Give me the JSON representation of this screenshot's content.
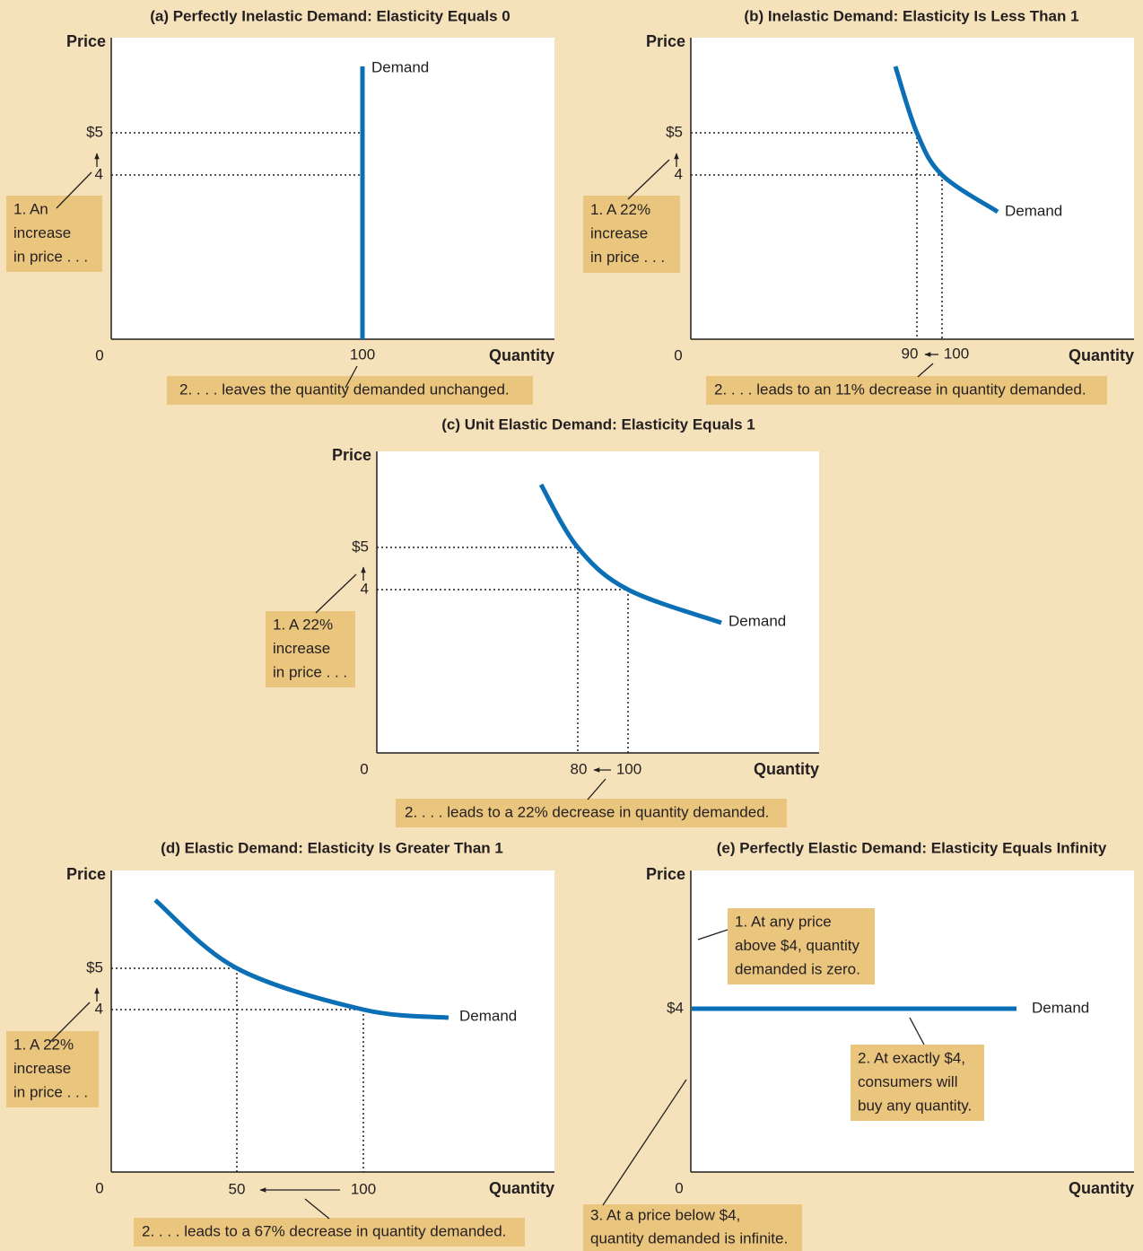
{
  "colors": {
    "background": "#f5e2bb",
    "annotation_box": "#eac57e",
    "plot_background": "#ffffff",
    "demand_curve": "#0b6fb5",
    "text": "#231f20"
  },
  "chart_data": [
    {
      "panel": "a",
      "type": "line",
      "title": "(a) Perfectly Inelastic Demand: Elasticity Equals 0",
      "xlabel": "Quantity",
      "ylabel": "Price",
      "origin_label": "0",
      "grid": false,
      "curve_label": "Demand",
      "series": [
        {
          "name": "Demand",
          "x": [
            100,
            100
          ],
          "y": [
            0,
            6.6
          ]
        }
      ],
      "ytick_labels": {
        "high": "$5",
        "low": "4"
      },
      "xtick_labels": [
        "100"
      ],
      "annotations": {
        "price_change": [
          "1. An",
          "increase",
          "in price . . ."
        ],
        "quantity_change": [
          "2. . . . leaves the quantity demanded unchanged."
        ]
      }
    },
    {
      "panel": "b",
      "type": "line",
      "title": "(b) Inelastic Demand: Elasticity Is Less Than 1",
      "xlabel": "Quantity",
      "ylabel": "Price",
      "origin_label": "0",
      "grid": false,
      "curve_label": "Demand",
      "series": [
        {
          "name": "Demand",
          "points": [
            [
              88,
              6.6
            ],
            [
              90,
              5
            ],
            [
              100,
              4
            ],
            [
              118,
              3
            ]
          ]
        }
      ],
      "ytick_labels": {
        "high": "$5",
        "low": "4"
      },
      "xtick_labels": [
        "90",
        "100"
      ],
      "annotations": {
        "price_change": [
          "1. A 22%",
          "increase",
          "in price . . ."
        ],
        "quantity_change": [
          "2. . . . leads to an 11% decrease in quantity demanded."
        ]
      }
    },
    {
      "panel": "c",
      "type": "line",
      "title": "(c) Unit Elastic Demand: Elasticity Equals 1",
      "xlabel": "Quantity",
      "ylabel": "Price",
      "origin_label": "0",
      "grid": false,
      "curve_label": "Demand",
      "series": [
        {
          "name": "Demand",
          "points": [
            [
              66,
              6.6
            ],
            [
              80,
              5
            ],
            [
              100,
              4
            ],
            [
              138,
              3
            ]
          ]
        }
      ],
      "ytick_labels": {
        "high": "$5",
        "low": "4"
      },
      "xtick_labels": [
        "80",
        "100"
      ],
      "annotations": {
        "price_change": [
          "1. A 22%",
          "increase",
          "in price . . ."
        ],
        "quantity_change": [
          "2. . . . leads to a 22% decrease in quantity demanded."
        ]
      }
    },
    {
      "panel": "d",
      "type": "line",
      "title": "(d) Elastic Demand: Elasticity Is Greater Than 1",
      "xlabel": "Quantity",
      "ylabel": "Price",
      "origin_label": "0",
      "grid": false,
      "curve_label": "Demand",
      "series": [
        {
          "name": "Demand",
          "points": [
            [
              18,
              6.4
            ],
            [
              50,
              5
            ],
            [
              100,
              4
            ],
            [
              134,
              3.7
            ]
          ]
        }
      ],
      "ytick_labels": {
        "high": "$5",
        "low": "4"
      },
      "xtick_labels": [
        "50",
        "100"
      ],
      "annotations": {
        "price_change": [
          "1. A 22%",
          "increase",
          "in price . . ."
        ],
        "quantity_change": [
          "2. . . . leads to a 67% decrease in quantity demanded."
        ]
      }
    },
    {
      "panel": "e",
      "type": "line",
      "title": "(e) Perfectly Elastic Demand: Elasticity Equals Infinity",
      "xlabel": "Quantity",
      "ylabel": "Price",
      "origin_label": "0",
      "grid": false,
      "curve_label": "Demand",
      "series": [
        {
          "name": "Demand",
          "x": [
            0,
            130
          ],
          "y": [
            4,
            4
          ]
        }
      ],
      "ytick_labels": {
        "price": "$4"
      },
      "annotations": {
        "above": [
          "1. At any price",
          "above $4, quantity",
          "demanded is zero."
        ],
        "at": [
          "2. At exactly $4,",
          "consumers will",
          "buy any quantity."
        ],
        "below": [
          "3. At a price below $4,",
          "quantity demanded is infinite."
        ]
      }
    }
  ]
}
